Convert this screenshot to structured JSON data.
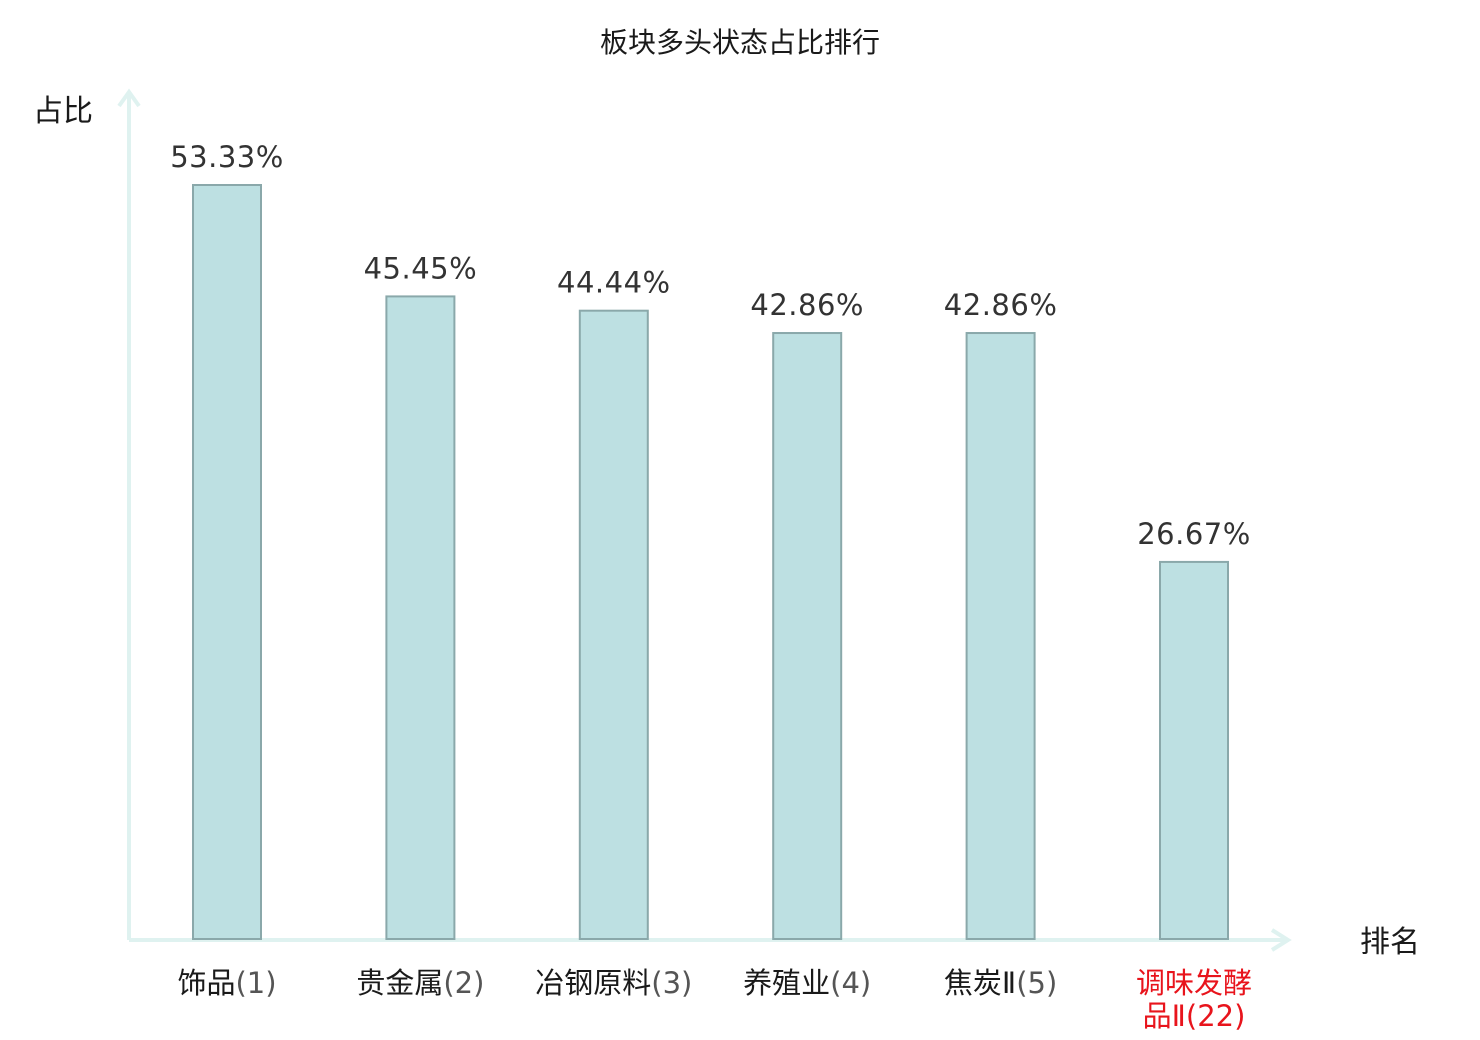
{
  "chart_data": {
    "type": "bar",
    "title": "板块多头状态占比排行",
    "ylabel": "占比",
    "xlabel": "排名",
    "categories": [
      {
        "name": "饰品",
        "rank": "(1)",
        "highlight": false
      },
      {
        "name": "贵金属",
        "rank": "(2)",
        "highlight": false
      },
      {
        "name": "冶钢原料",
        "rank": "(3)",
        "highlight": false
      },
      {
        "name": "养殖业",
        "rank": "(4)",
        "highlight": false
      },
      {
        "name": "焦炭Ⅱ",
        "rank": "(5)",
        "highlight": false
      },
      {
        "name": "调味发酵品Ⅱ",
        "rank": "(22)",
        "highlight": true,
        "line1": "调味发酵",
        "line2": "品Ⅱ"
      }
    ],
    "values": [
      53.33,
      45.45,
      44.44,
      42.86,
      42.86,
      26.67
    ],
    "value_labels": [
      "53.33%",
      "45.45%",
      "44.44%",
      "42.86%",
      "42.86%",
      "26.67%"
    ],
    "ylim": [
      0,
      60
    ],
    "grid": false,
    "colors": {
      "bar_fill": "#bde0e2",
      "bar_stroke": "#8aa8aa",
      "axis": "#dff2f0",
      "highlight": "#e8141c",
      "normal_text": "#1a1a1a",
      "rank_text": "#555555"
    }
  }
}
